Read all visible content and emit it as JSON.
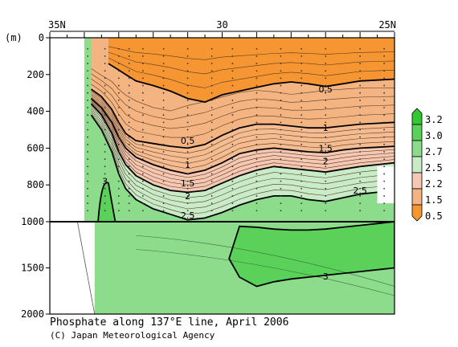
{
  "chart_data": {
    "type": "contour",
    "title": "Phosphate along 137°E line, April 2006",
    "credit": "(C) Japan Meteorological Agency",
    "x_axis": {
      "ticks": [
        {
          "lat": 35,
          "label": "35N"
        },
        {
          "lat": 30,
          "label": "30"
        },
        {
          "lat": 25,
          "label": "25N"
        }
      ],
      "range": [
        35,
        25
      ]
    },
    "y_axis": {
      "unit_label": "(m)",
      "upper_range": [
        0,
        1000
      ],
      "lower_range": [
        1000,
        2000
      ],
      "ticks": [
        {
          "depth": 0,
          "label": "0"
        },
        {
          "depth": 200,
          "label": "200"
        },
        {
          "depth": 400,
          "label": "400"
        },
        {
          "depth": 600,
          "label": "600"
        },
        {
          "depth": 800,
          "label": "800"
        },
        {
          "depth": 1000,
          "label": "1000"
        },
        {
          "depth": 1500,
          "label": "1500"
        },
        {
          "depth": 2000,
          "label": "2000"
        }
      ]
    },
    "colorbar": {
      "levels": [
        "3.2",
        "3.0",
        "2.7",
        "2.5",
        "2.2",
        "1.5",
        "0.5"
      ],
      "colors": [
        "#31c831",
        "#5ad25a",
        "#8cdc8c",
        "#c8ebc8",
        "#f5c8b4",
        "#f3b482",
        "#f59632"
      ]
    },
    "station_lats": [
      33.9,
      33.4,
      33.0,
      32.7,
      32.3,
      31.7,
      31.0,
      30.3,
      29.7,
      29.0,
      28.3,
      27.7,
      27.0,
      26.0,
      25.3
    ],
    "contours": [
      {
        "level": "0.5",
        "x": [
          33.3,
          33.0,
          32.8,
          32.5,
          32.0,
          31.5,
          31.0,
          30.5,
          30.0,
          29.5,
          29.0,
          28.5,
          28.0,
          27.5,
          27.0,
          26.5,
          26.0,
          25.5,
          25.0
        ],
        "d": [
          140,
          175,
          200,
          235,
          260,
          290,
          330,
          350,
          310,
          290,
          270,
          250,
          240,
          250,
          265,
          250,
          235,
          230,
          225
        ]
      },
      {
        "level": "1",
        "x": [
          33.8,
          33.5,
          33.2,
          33.0,
          32.8,
          32.5,
          32.0,
          31.5,
          31.0,
          30.5,
          30.0,
          29.5,
          29.0,
          28.5,
          28.0,
          27.5,
          27.0,
          26.5,
          26.0,
          25.5,
          25.0
        ],
        "d": [
          280,
          320,
          390,
          460,
          520,
          560,
          575,
          590,
          600,
          580,
          530,
          490,
          470,
          470,
          480,
          490,
          490,
          480,
          470,
          465,
          460
        ]
      },
      {
        "level": "1.5",
        "x": [
          33.8,
          33.5,
          33.2,
          33.0,
          32.8,
          32.5,
          32.0,
          31.5,
          31.0,
          30.5,
          30.0,
          29.5,
          29.0,
          28.5,
          28.0,
          27.5,
          27.0,
          26.5,
          26.0,
          25.5,
          25.0
        ],
        "d": [
          330,
          380,
          460,
          540,
          600,
          650,
          690,
          720,
          740,
          720,
          680,
          630,
          610,
          600,
          610,
          620,
          625,
          610,
          600,
          595,
          590
        ]
      },
      {
        "level": "2",
        "x": [
          33.8,
          33.5,
          33.2,
          33.0,
          32.8,
          32.5,
          32.0,
          31.5,
          31.0,
          30.5,
          30.0,
          29.5,
          29.0,
          28.5,
          28.0,
          27.5,
          27.0,
          26.5,
          26.0,
          25.5,
          25.0
        ],
        "d": [
          360,
          420,
          520,
          620,
          690,
          750,
          800,
          830,
          840,
          830,
          790,
          750,
          720,
          700,
          710,
          720,
          730,
          715,
          700,
          690,
          680
        ]
      },
      {
        "level": "2.5",
        "x": [
          33.8,
          33.5,
          33.2,
          33.0,
          32.8,
          32.5,
          32.0,
          31.5,
          31.0,
          30.5,
          30.0,
          29.5,
          29.0,
          28.5,
          28.0,
          27.5,
          27.0,
          26.5,
          26.0,
          25.5,
          25.0
        ],
        "d": [
          420,
          500,
          620,
          740,
          820,
          880,
          930,
          960,
          990,
          980,
          950,
          910,
          880,
          860,
          860,
          880,
          890,
          870,
          850,
          840,
          830
        ]
      },
      {
        "level": "3",
        "x": [
          29.5,
          29.0,
          28.5,
          28.0,
          27.5,
          27.0,
          26.5,
          26.0,
          25.5,
          25.0,
          25.0,
          25.5,
          26.0,
          26.5,
          27.0,
          27.5,
          28.0,
          28.5,
          29.0,
          29.5,
          29.8,
          29.5
        ],
        "d": [
          1050,
          1060,
          1080,
          1090,
          1090,
          1080,
          1060,
          1040,
          1020,
          1000,
          1500,
          1520,
          1540,
          1560,
          1580,
          1600,
          1620,
          1650,
          1700,
          1600,
          1400,
          1050
        ]
      }
    ],
    "contour_labels": [
      {
        "text": "0.5",
        "lat": 27.0,
        "depth": 280
      },
      {
        "text": "1",
        "lat": 27.0,
        "depth": 490
      },
      {
        "text": "1.5",
        "lat": 27.0,
        "depth": 600
      },
      {
        "text": "2",
        "lat": 27.0,
        "depth": 670
      },
      {
        "text": "2.5",
        "lat": 26.0,
        "depth": 830
      },
      {
        "text": "0.5",
        "lat": 31.0,
        "depth": 560
      },
      {
        "text": "1",
        "lat": 31.0,
        "depth": 690
      },
      {
        "text": "1.5",
        "lat": 31.0,
        "depth": 790
      },
      {
        "text": "2",
        "lat": 31.0,
        "depth": 860
      },
      {
        "text": "2.5",
        "lat": 31.0,
        "depth": 965
      },
      {
        "text": "3",
        "lat": 33.4,
        "depth": 780
      },
      {
        "text": "3",
        "lat": 27.0,
        "depth": 1590
      }
    ]
  }
}
